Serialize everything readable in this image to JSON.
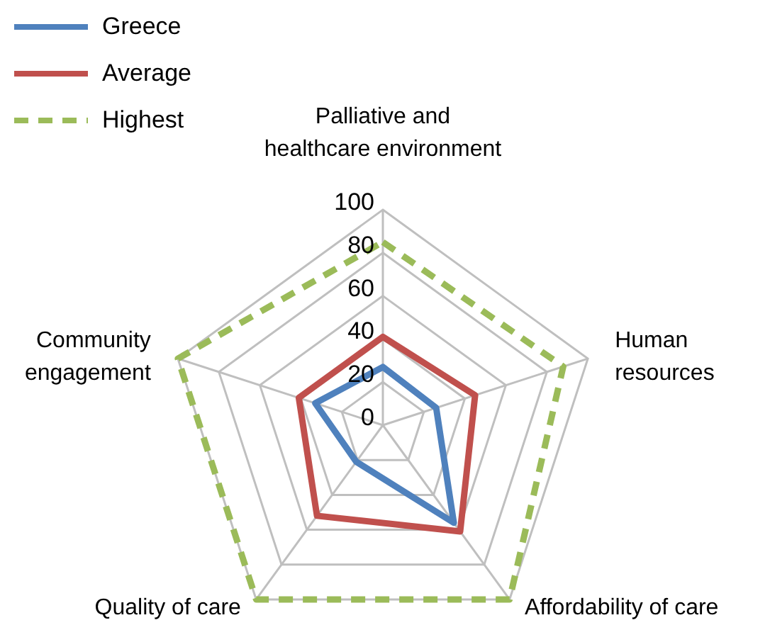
{
  "chart_data": {
    "type": "radar",
    "categories": [
      "Palliative and healthcare environment",
      "Human resources",
      "Affordability of care",
      "Quality of care",
      "Community engagement"
    ],
    "series": [
      {
        "name": "Greece",
        "color": "#4f81bd",
        "values": [
          27,
          26,
          56,
          21,
          33
        ]
      },
      {
        "name": "Average",
        "color": "#c0504d",
        "values": [
          41,
          45,
          61,
          52,
          41
        ]
      },
      {
        "name": "Highest",
        "color": "#9bbb59",
        "values": [
          85,
          88,
          100,
          100,
          100
        ],
        "line_style": "dashed"
      }
    ],
    "ylim": [
      0,
      100
    ],
    "yticks": [
      0,
      20,
      40,
      60,
      80,
      100
    ],
    "grid": true,
    "legend": "top left",
    "marker": "none"
  }
}
